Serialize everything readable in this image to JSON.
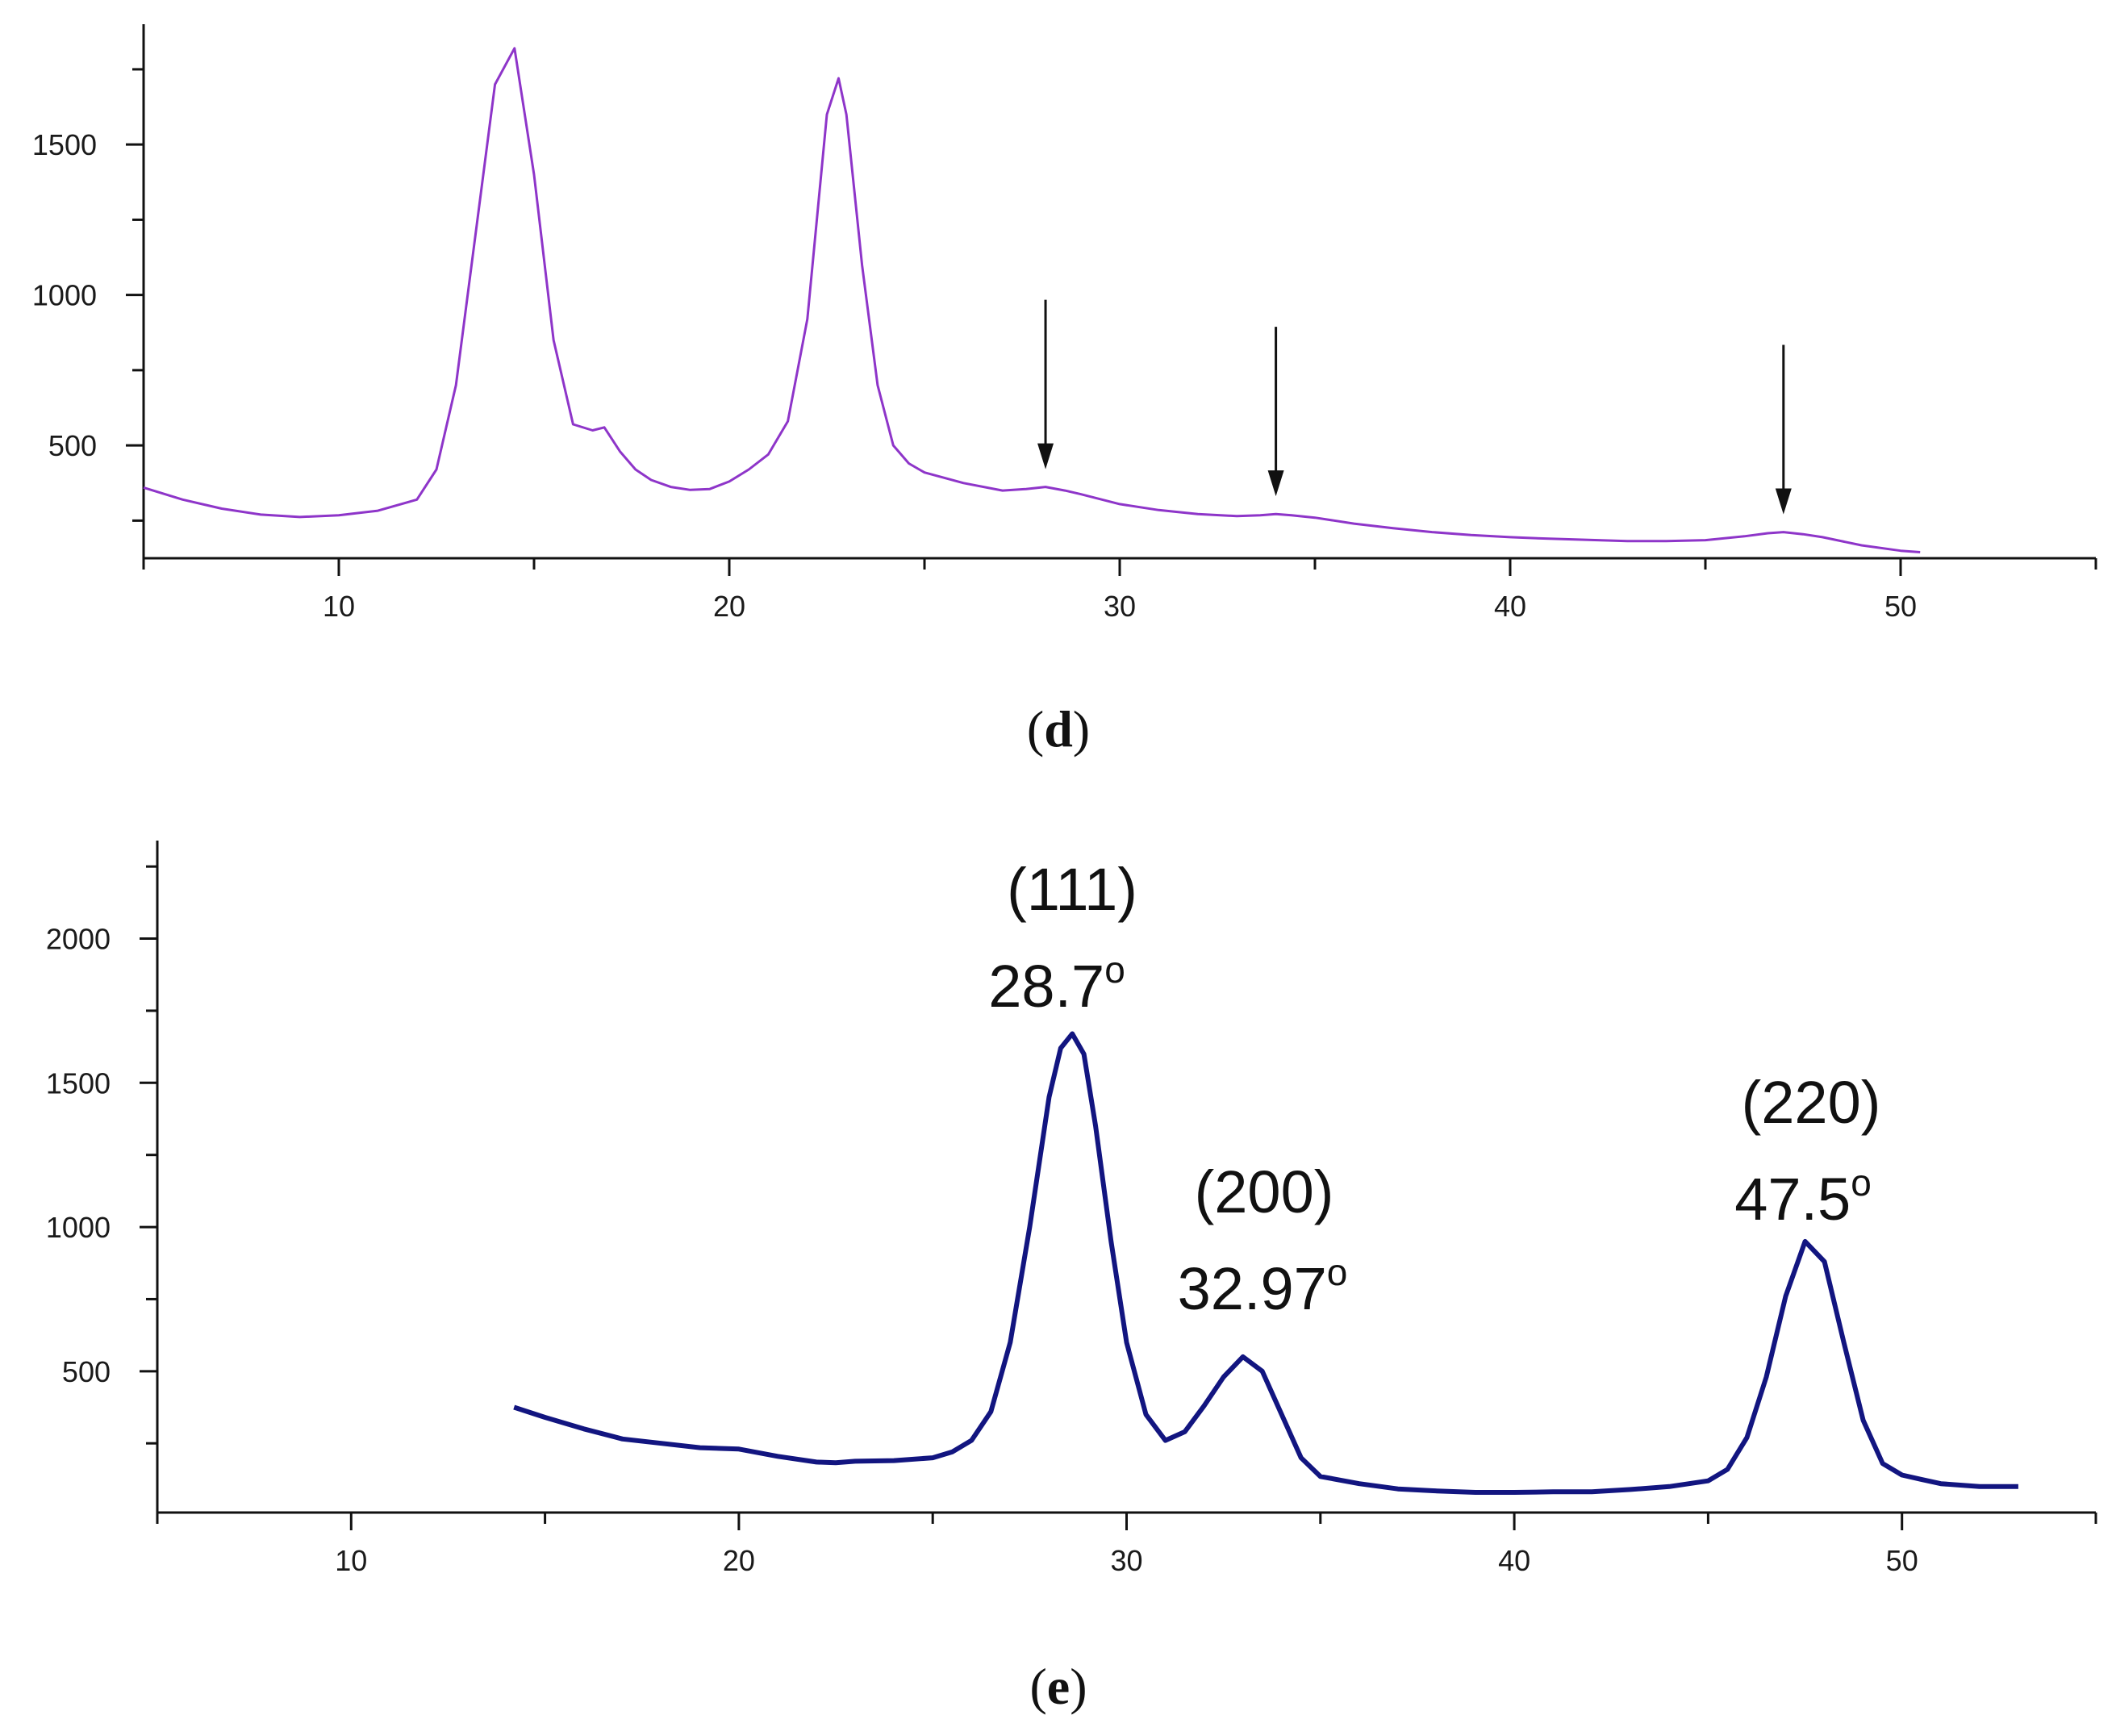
{
  "colors": {
    "axis": "#111111",
    "series_d": "#8e35c9",
    "series_e": "#121580",
    "arrow": "#111111"
  },
  "chart_data": [
    {
      "id": "d",
      "type": "line",
      "caption": {
        "open": "(",
        "letter": "d",
        "close": ")"
      },
      "title": "",
      "xlabel": "",
      "ylabel": "",
      "xlim": [
        5,
        55
      ],
      "ylim": [
        125,
        1900
      ],
      "xticks": [
        "10",
        "20",
        "30",
        "40",
        "50"
      ],
      "xtick_values": [
        10,
        20,
        30,
        40,
        50
      ],
      "yticks": [
        "500",
        "1000",
        "1500"
      ],
      "ytick_values": [
        500,
        1000,
        1500
      ],
      "series": [
        {
          "name": "d",
          "x": [
            5,
            6,
            7,
            8,
            9,
            10,
            11,
            12,
            12.5,
            13,
            13.5,
            14,
            14.5,
            15,
            15.5,
            16,
            16.5,
            16.8,
            17.2,
            17.6,
            18,
            18.5,
            19,
            19.5,
            20,
            20.5,
            21,
            21.5,
            22,
            22.5,
            22.8,
            23,
            23.4,
            23.8,
            24.2,
            24.6,
            25,
            26,
            27,
            27.6,
            28.1,
            28.6,
            29,
            30,
            31,
            32,
            33,
            33.6,
            34,
            34.4,
            35,
            36,
            37,
            38,
            39,
            40,
            41,
            42,
            43,
            44,
            45,
            46,
            46.6,
            47,
            47.5,
            48,
            49,
            50,
            50.5
          ],
          "y": [
            360,
            320,
            290,
            270,
            262,
            268,
            283,
            320,
            420,
            700,
            1200,
            1700,
            1820,
            1400,
            850,
            570,
            550,
            560,
            480,
            420,
            385,
            362,
            352,
            355,
            380,
            420,
            470,
            580,
            920,
            1600,
            1720,
            1600,
            1100,
            700,
            500,
            440,
            410,
            375,
            350,
            355,
            362,
            350,
            338,
            305,
            285,
            272,
            265,
            268,
            272,
            268,
            260,
            240,
            225,
            212,
            202,
            195,
            190,
            186,
            182,
            182,
            185,
            198,
            208,
            212,
            205,
            195,
            168,
            150,
            145
          ]
        }
      ],
      "arrows": [
        {
          "x": 28.1
        },
        {
          "x": 34
        },
        {
          "x": 47
        }
      ]
    },
    {
      "id": "e",
      "type": "line",
      "caption": {
        "open": "(",
        "letter": "e",
        "close": ")"
      },
      "title": "",
      "xlabel": "",
      "ylabel": "",
      "xlim": [
        5,
        55
      ],
      "ylim": [
        10,
        2340
      ],
      "xticks": [
        "10",
        "20",
        "30",
        "40",
        "50"
      ],
      "xtick_values": [
        10,
        20,
        30,
        40,
        50
      ],
      "yticks": [
        "500",
        "1000",
        "1500",
        "2000"
      ],
      "ytick_values": [
        500,
        1000,
        1500,
        2000
      ],
      "series": [
        {
          "name": "e",
          "x": [
            14.2,
            15,
            16,
            17,
            18,
            19,
            20,
            21,
            22,
            22.5,
            23,
            24,
            25,
            25.5,
            26,
            26.5,
            27,
            27.5,
            28,
            28.3,
            28.6,
            28.9,
            29.2,
            29.6,
            30,
            30.5,
            31,
            31.5,
            32,
            32.5,
            33,
            33.5,
            34,
            34.5,
            35,
            36,
            37,
            38,
            39,
            40,
            41,
            42,
            43,
            44,
            45,
            45.5,
            46,
            46.5,
            47,
            47.5,
            48,
            48.5,
            49,
            49.5,
            50,
            50.5,
            51,
            52,
            53
          ],
          "y": [
            375,
            340,
            300,
            265,
            250,
            235,
            230,
            205,
            185,
            183,
            188,
            190,
            200,
            220,
            260,
            360,
            600,
            1000,
            1450,
            1620,
            1670,
            1600,
            1350,
            950,
            600,
            350,
            260,
            290,
            380,
            480,
            550,
            500,
            350,
            200,
            135,
            110,
            92,
            85,
            80,
            80,
            82,
            82,
            90,
            100,
            120,
            160,
            270,
            480,
            760,
            950,
            880,
            600,
            330,
            180,
            140,
            125,
            110,
            100,
            100
          ]
        }
      ],
      "annotations": [
        {
          "index": "(111)",
          "angle": "28.7",
          "degree": "o",
          "x": 28.6
        },
        {
          "index": "(200)",
          "angle": "32.97",
          "degree": "o",
          "x": 33
        },
        {
          "index": "(220)",
          "angle": "47.5",
          "degree": "o",
          "x": 47.5
        }
      ]
    }
  ]
}
